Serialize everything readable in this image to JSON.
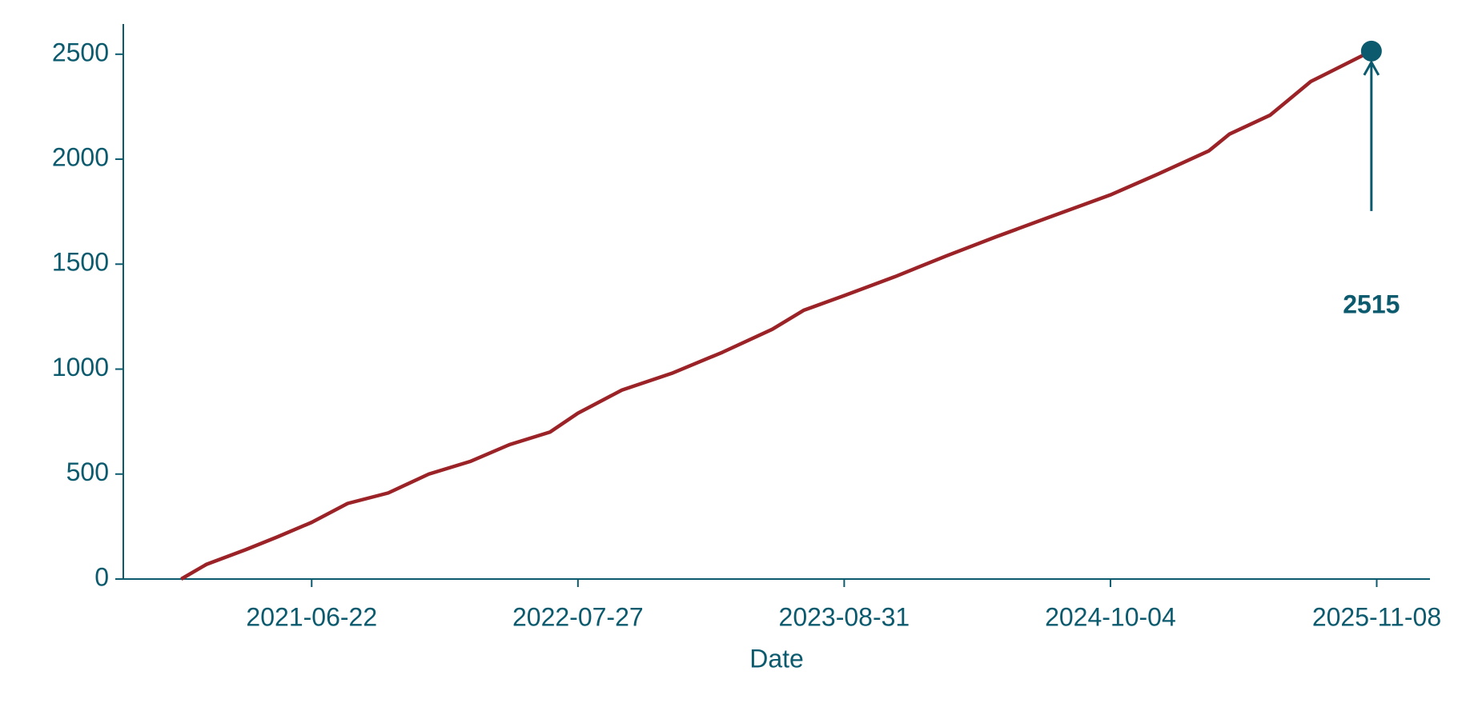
{
  "chart_data": {
    "type": "line",
    "xlabel": "Date",
    "x": [
      "2020-12-08",
      "2021-01-15",
      "2021-03-15",
      "2021-05-01",
      "2021-06-22",
      "2021-08-15",
      "2021-10-15",
      "2021-12-15",
      "2022-02-15",
      "2022-04-15",
      "2022-06-15",
      "2022-07-27",
      "2022-10-01",
      "2022-12-15",
      "2023-03-01",
      "2023-05-15",
      "2023-07-01",
      "2023-08-31",
      "2023-11-15",
      "2024-02-01",
      "2024-04-15",
      "2024-07-01",
      "2024-10-04",
      "2024-12-15",
      "2025-03-01",
      "2025-04-01",
      "2025-06-01",
      "2025-08-01",
      "2025-10-31"
    ],
    "values": [
      0,
      70,
      140,
      200,
      270,
      360,
      410,
      500,
      560,
      640,
      700,
      790,
      900,
      980,
      1080,
      1190,
      1280,
      1350,
      1440,
      1540,
      1630,
      1720,
      1830,
      1930,
      2040,
      2120,
      2210,
      2370,
      2515
    ],
    "color": "#9b2226",
    "annotation_color": "#0b5a6e",
    "xlim": [
      "2020-09-12",
      "2026-01-27"
    ],
    "xticks": [
      "2021-06-22",
      "2022-07-27",
      "2023-08-31",
      "2024-10-04",
      "2025-11-08"
    ],
    "ylim": [
      0,
      2644
    ],
    "yticks": [
      0,
      500,
      1000,
      1500,
      2000,
      2500
    ]
  }
}
